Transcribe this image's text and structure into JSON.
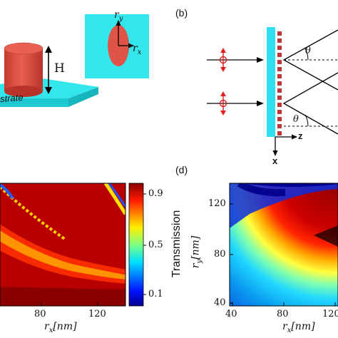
{
  "panel_a": {
    "height_label": "H",
    "substrate_label": "strate",
    "rx_symbol": "r",
    "rx_sub": "x",
    "ry_symbol": "r",
    "ry_sub": "y",
    "colors": {
      "pillar": "#e05448",
      "substrate": "#33e6ec"
    }
  },
  "panel_b": {
    "label": "(b)",
    "theta": "θ",
    "axis_z": "z",
    "axis_x": "x",
    "colors": {
      "metasurface": "#2fdff0",
      "pillars": "#c0353a",
      "source": "#e02020"
    }
  },
  "panel_c": {
    "colorbar_title": "Transmission",
    "colorbar_ticks": [
      "0.9",
      "0.5",
      "0.1"
    ],
    "x_ticks": [
      "80",
      "120"
    ],
    "x_label_symbol": "r",
    "x_label_sub": "x",
    "x_label_unit": "[nm]"
  },
  "panel_d": {
    "label": "(d)",
    "y_ticks": [
      "120",
      "80",
      "40"
    ],
    "y_label_symbol": "r",
    "y_label_sub": "y",
    "y_label_unit": "[nm]",
    "x_ticks": [
      "40",
      "80",
      "120"
    ],
    "x_label_symbol": "r",
    "x_label_sub": "x",
    "x_label_unit": "[nm]"
  },
  "chart_data": [
    {
      "type": "heatmap",
      "title": "",
      "xlabel": "rx[nm]",
      "ylabel": "",
      "x_ticks": [
        80,
        120
      ],
      "colorbar": {
        "label": "Transmission",
        "ticks": [
          0.1,
          0.5,
          0.9
        ],
        "range": [
          0.05,
          0.98
        ]
      },
      "description_values": {
        "background": 0.95,
        "resonance_band": 0.75
      }
    },
    {
      "type": "heatmap",
      "title": "",
      "xlabel": "rx[nm]",
      "ylabel": "ry[nm]",
      "xlim": [
        35,
        140
      ],
      "ylim": [
        35,
        140
      ],
      "x_ticks": [
        40,
        80,
        120
      ],
      "y_ticks": [
        40,
        80,
        120
      ]
    }
  ]
}
